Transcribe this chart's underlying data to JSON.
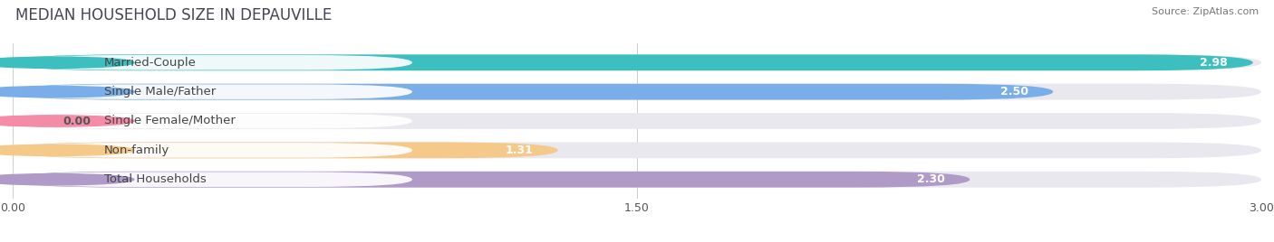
{
  "title": "MEDIAN HOUSEHOLD SIZE IN DEPAUVILLE",
  "source": "Source: ZipAtlas.com",
  "categories": [
    "Married-Couple",
    "Single Male/Father",
    "Single Female/Mother",
    "Non-family",
    "Total Households"
  ],
  "values": [
    2.98,
    2.5,
    0.0,
    1.31,
    2.3
  ],
  "bar_colors": [
    "#3dbfbf",
    "#7aaee8",
    "#f48ca8",
    "#f5c98a",
    "#b09ac8"
  ],
  "bar_bg_color": "#e8e8ee",
  "xlim": [
    0,
    3.0
  ],
  "xticks": [
    0.0,
    1.5,
    3.0
  ],
  "xtick_labels": [
    "0.00",
    "1.50",
    "3.00"
  ],
  "title_fontsize": 12,
  "label_fontsize": 9.5,
  "value_fontsize": 9,
  "background_color": "#ffffff"
}
